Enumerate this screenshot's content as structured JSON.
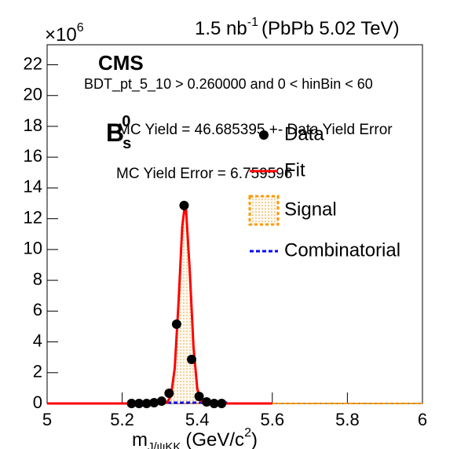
{
  "chart_data": {
    "type": "line",
    "lumi": "1.5 nb",
    "lumi_sup": "-1",
    "energy": "(PbPb 5.02 TeV)",
    "experiment": "CMS",
    "selection": "BDT_pt_5_10 > 0.260000 and 0 < hinBin < 60",
    "particle": "B",
    "particle_sub": "s",
    "particle_sup": "0",
    "mc_yield": "MC Yield = 46.685395 +- Data Yield Error",
    "mc_yield_error": "MC Yield Error = 6.759596",
    "y_multiplier": "×10",
    "y_multiplier_sup": "6",
    "x_label": {
      "main": "m",
      "sub": "J/ψKK",
      "unit": "(GeV/c",
      "unit_sup": "2",
      "unit_end": ")"
    },
    "xlim": [
      5,
      6
    ],
    "xticks": [
      5,
      {
        "value": 5.2,
        "label": "5.2"
      },
      {
        "value": 5.4,
        "label": "5.4"
      },
      {
        "value": 5.6,
        "label": "5.6"
      },
      {
        "value": 5.8,
        "label": "5.8"
      },
      6
    ],
    "ylim": [
      0,
      23.3
    ],
    "yticks": [
      0,
      2,
      4,
      6,
      8,
      10,
      12,
      14,
      16,
      18,
      20,
      22
    ],
    "series": [
      {
        "name": "Data",
        "color": "#000000",
        "style": "markers",
        "x": [
          5.225,
          5.245,
          5.265,
          5.285,
          5.305,
          5.325,
          5.345,
          5.365,
          5.385,
          5.405,
          5.425,
          5.445,
          5.465
        ],
        "values": [
          0,
          0,
          0,
          0.05,
          0.15,
          0.66,
          5.15,
          12.86,
          2.86,
          0.46,
          0.1,
          0,
          0
        ]
      },
      {
        "name": "Fit",
        "color": "#ff0000",
        "style": "line",
        "x": [
          5,
          5.3,
          5.32,
          5.33,
          5.34,
          5.35,
          5.36,
          5.367,
          5.37,
          5.38,
          5.39,
          5.4,
          5.41,
          5.42,
          5.44,
          5.6
        ],
        "values": [
          0,
          0,
          0.07,
          0.5,
          2.29,
          6.49,
          11.48,
          12.9,
          12.63,
          8.63,
          3.67,
          0.97,
          0.16,
          0.01,
          0,
          0
        ]
      },
      {
        "name": "Signal",
        "color": "#ff9900",
        "style": "filled",
        "x": [
          5,
          5.3,
          5.32,
          5.33,
          5.34,
          5.35,
          5.36,
          5.367,
          5.37,
          5.38,
          5.39,
          5.4,
          5.41,
          5.42,
          5.44,
          6
        ],
        "values": [
          0,
          0,
          0.07,
          0.5,
          2.29,
          6.49,
          11.48,
          12.9,
          12.63,
          8.63,
          3.67,
          0.97,
          0.16,
          0.01,
          0,
          0
        ]
      },
      {
        "name": "Combinatorial",
        "color": "#0000ff",
        "style": "dashed",
        "x": [
          5.22,
          5.48
        ],
        "values": [
          0.05,
          0.05
        ]
      }
    ]
  }
}
